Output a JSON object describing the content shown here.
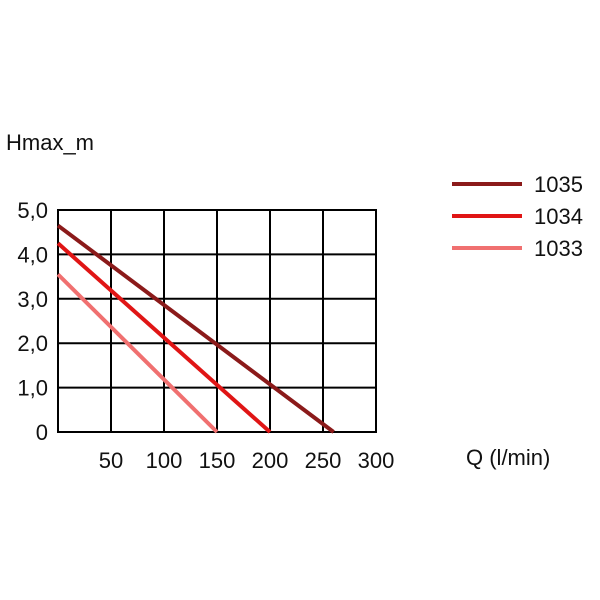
{
  "chart_data": {
    "type": "line",
    "ylabel": "Hmax_m",
    "xlabel": "Q (l/min)",
    "xlim": [
      0,
      300
    ],
    "ylim": [
      0,
      5
    ],
    "x_ticks": [
      {
        "value": 50,
        "label": "50"
      },
      {
        "value": 100,
        "label": "100"
      },
      {
        "value": 150,
        "label": "150"
      },
      {
        "value": 200,
        "label": "200"
      },
      {
        "value": 250,
        "label": "250"
      },
      {
        "value": 300,
        "label": "300"
      }
    ],
    "y_ticks": [
      {
        "value": 0,
        "label": "0"
      },
      {
        "value": 1,
        "label": "1,0"
      },
      {
        "value": 2,
        "label": "2,0"
      },
      {
        "value": 3,
        "label": "3,0"
      },
      {
        "value": 4,
        "label": "4,0"
      },
      {
        "value": 5,
        "label": "5,0"
      }
    ],
    "grid": true,
    "legend_position": "top-right",
    "series": [
      {
        "name": "1035",
        "color": "#8b1a1a",
        "x": [
          0,
          260
        ],
        "y": [
          4.65,
          0
        ]
      },
      {
        "name": "1034",
        "color": "#e01515",
        "x": [
          0,
          200
        ],
        "y": [
          4.25,
          0
        ]
      },
      {
        "name": "1033",
        "color": "#f07070",
        "x": [
          0,
          150
        ],
        "y": [
          3.55,
          0
        ]
      }
    ]
  }
}
